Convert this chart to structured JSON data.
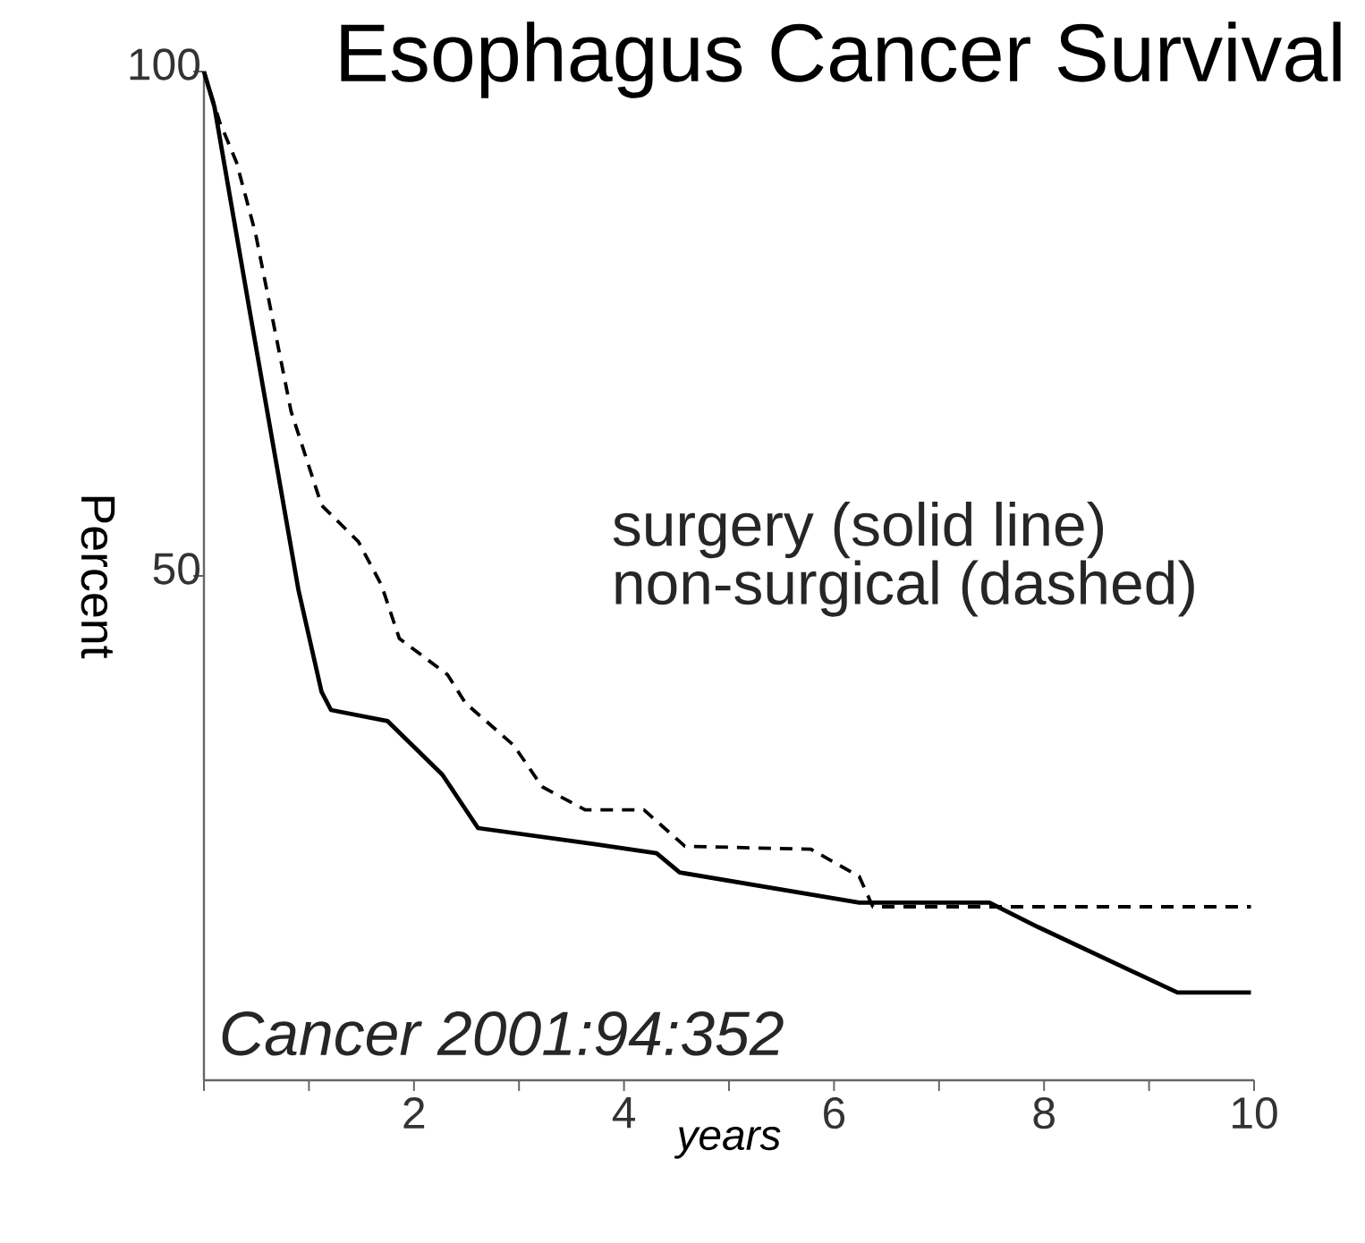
{
  "chart_data": {
    "type": "line",
    "title": "Esophagus Cancer Survival",
    "xlabel": "years",
    "ylabel": "Percent",
    "annotations": [
      "surgery (solid line)",
      "non-surgical (dashed)",
      "Cancer 2001:94:352"
    ],
    "xlim": [
      0,
      10
    ],
    "ylim": [
      0,
      100
    ],
    "xticks": [
      {
        "value": 0,
        "label": null
      },
      {
        "value": 1,
        "label": null
      },
      2,
      {
        "value": 3,
        "label": null
      },
      4,
      {
        "value": 5,
        "label": null
      },
      6,
      {
        "value": 7,
        "label": null
      },
      8,
      {
        "value": 9,
        "label": null
      },
      10
    ],
    "yticks": [
      50,
      100
    ],
    "grid": false,
    "marker": "none",
    "series": [
      {
        "color": "#000000",
        "line_style": "solid",
        "x": [
          0,
          0.1,
          0.44,
          0.9,
          1.12,
          1.21,
          1.75,
          2.27,
          2.61,
          3.73,
          4.31,
          4.53,
          6.24,
          7.48,
          7.94,
          9.27,
          9.97
        ],
        "values": [
          100,
          96.5,
          76,
          48.6,
          38.5,
          36.7,
          35.6,
          30.3,
          25,
          23.4,
          22.5,
          20.6,
          17.6,
          17.6,
          15.2,
          8.7,
          8.7
        ]
      },
      {
        "color": "#000000",
        "line_style": "dashed",
        "x": [
          0,
          0.15,
          0.31,
          0.49,
          0.83,
          1.12,
          1.47,
          1.69,
          1.86,
          2.32,
          2.49,
          2.95,
          3.22,
          3.63,
          4.19,
          4.58,
          5.78,
          6.24,
          6.37,
          9.97
        ],
        "values": [
          100,
          95,
          91,
          84,
          66.3,
          57,
          53.4,
          49.1,
          43.8,
          40.2,
          37.4,
          33.2,
          29.1,
          26.8,
          26.8,
          23.2,
          22.9,
          20.2,
          17.2,
          17.2
        ]
      }
    ]
  }
}
